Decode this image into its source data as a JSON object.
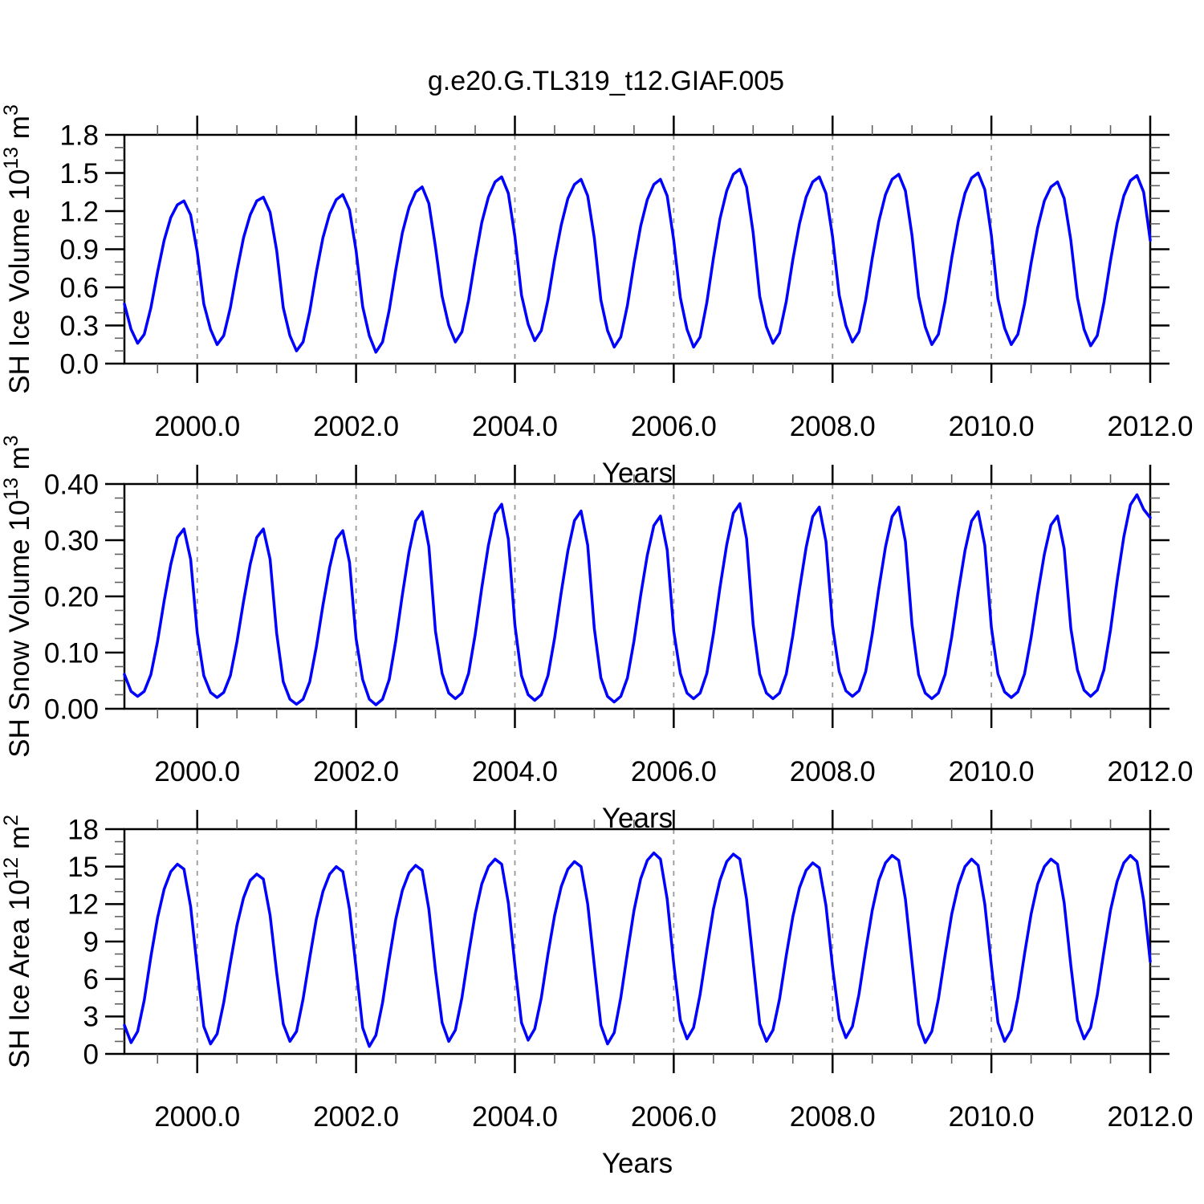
{
  "title": "g.e20.G.TL319_t12.GIAF.005",
  "colors": {
    "line": "#0000ff",
    "grid": "#999999",
    "axis": "#000000",
    "minor_tick": "#606060",
    "background": "#ffffff"
  },
  "chart_data": {
    "type": "line",
    "x_label": "Years",
    "x_lim": [
      1999.083,
      2012.0
    ],
    "x_ticks": [
      2000,
      2002,
      2004,
      2006,
      2008,
      2010,
      2012
    ],
    "x_tick_labels": [
      "2000.0",
      "2002.0",
      "2004.0",
      "2006.0",
      "2008.0",
      "2010.0",
      "2012.0"
    ],
    "x_minor_step": 0.5,
    "x_grid": [
      2000,
      2002,
      2004,
      2006,
      2008,
      2010
    ],
    "x_monthly": [
      1999.083,
      1999.167,
      1999.25,
      1999.333,
      1999.417,
      1999.5,
      1999.583,
      1999.667,
      1999.75,
      1999.833,
      1999.917,
      2000,
      2000.083,
      2000.167,
      2000.25,
      2000.333,
      2000.417,
      2000.5,
      2000.583,
      2000.667,
      2000.75,
      2000.833,
      2000.917,
      2001,
      2001.083,
      2001.167,
      2001.25,
      2001.333,
      2001.417,
      2001.5,
      2001.583,
      2001.667,
      2001.75,
      2001.833,
      2001.917,
      2002,
      2002.083,
      2002.167,
      2002.25,
      2002.333,
      2002.417,
      2002.5,
      2002.583,
      2002.667,
      2002.75,
      2002.833,
      2002.917,
      2003,
      2003.083,
      2003.167,
      2003.25,
      2003.333,
      2003.417,
      2003.5,
      2003.583,
      2003.667,
      2003.75,
      2003.833,
      2003.917,
      2004,
      2004.083,
      2004.167,
      2004.25,
      2004.333,
      2004.417,
      2004.5,
      2004.583,
      2004.667,
      2004.75,
      2004.833,
      2004.917,
      2005,
      2005.083,
      2005.167,
      2005.25,
      2005.333,
      2005.417,
      2005.5,
      2005.583,
      2005.667,
      2005.75,
      2005.833,
      2005.917,
      2006,
      2006.083,
      2006.167,
      2006.25,
      2006.333,
      2006.417,
      2006.5,
      2006.583,
      2006.667,
      2006.75,
      2006.833,
      2006.917,
      2007,
      2007.083,
      2007.167,
      2007.25,
      2007.333,
      2007.417,
      2007.5,
      2007.583,
      2007.667,
      2007.75,
      2007.833,
      2007.917,
      2008,
      2008.083,
      2008.167,
      2008.25,
      2008.333,
      2008.417,
      2008.5,
      2008.583,
      2008.667,
      2008.75,
      2008.833,
      2008.917,
      2009,
      2009.083,
      2009.167,
      2009.25,
      2009.333,
      2009.417,
      2009.5,
      2009.583,
      2009.667,
      2009.75,
      2009.833,
      2009.917,
      2010,
      2010.083,
      2010.167,
      2010.25,
      2010.333,
      2010.417,
      2010.5,
      2010.583,
      2010.667,
      2010.75,
      2010.833,
      2010.917,
      2011,
      2011.083,
      2011.167,
      2011.25,
      2011.333,
      2011.417,
      2011.5,
      2011.583,
      2011.667,
      2011.75,
      2011.833,
      2011.917,
      2012
    ],
    "panels": [
      {
        "name": "sh-ice-volume",
        "y_label_parts": [
          {
            "t": "SH Ice Volume 10"
          },
          {
            "t": "13",
            "sup": true
          },
          {
            "t": " m"
          },
          {
            "t": "3",
            "sup": true
          }
        ],
        "y_lim": [
          0.0,
          1.8
        ],
        "y_ticks": [
          0.0,
          0.3,
          0.6,
          0.9,
          1.2,
          1.5,
          1.8
        ],
        "y_tick_labels": [
          "0.0",
          "0.3",
          "0.6",
          "0.9",
          "1.2",
          "1.5",
          "1.8"
        ],
        "y_minor_step": 0.1,
        "values": [
          0.47,
          0.27,
          0.16,
          0.23,
          0.44,
          0.72,
          0.97,
          1.15,
          1.25,
          1.28,
          1.17,
          0.88,
          0.47,
          0.27,
          0.15,
          0.22,
          0.44,
          0.73,
          0.99,
          1.17,
          1.28,
          1.31,
          1.19,
          0.89,
          0.44,
          0.22,
          0.1,
          0.17,
          0.41,
          0.72,
          0.99,
          1.18,
          1.29,
          1.33,
          1.21,
          0.89,
          0.45,
          0.22,
          0.09,
          0.17,
          0.42,
          0.74,
          1.03,
          1.23,
          1.35,
          1.39,
          1.26,
          0.92,
          0.53,
          0.3,
          0.17,
          0.25,
          0.5,
          0.82,
          1.11,
          1.31,
          1.43,
          1.47,
          1.34,
          1.0,
          0.54,
          0.31,
          0.18,
          0.26,
          0.5,
          0.82,
          1.09,
          1.3,
          1.41,
          1.45,
          1.32,
          0.99,
          0.5,
          0.26,
          0.13,
          0.21,
          0.46,
          0.79,
          1.08,
          1.29,
          1.41,
          1.45,
          1.32,
          0.97,
          0.52,
          0.27,
          0.13,
          0.21,
          0.48,
          0.83,
          1.14,
          1.36,
          1.49,
          1.53,
          1.39,
          1.03,
          0.53,
          0.29,
          0.16,
          0.24,
          0.49,
          0.82,
          1.1,
          1.31,
          1.43,
          1.47,
          1.34,
          1.0,
          0.54,
          0.3,
          0.17,
          0.25,
          0.5,
          0.83,
          1.12,
          1.33,
          1.45,
          1.49,
          1.36,
          1.01,
          0.53,
          0.29,
          0.15,
          0.23,
          0.49,
          0.83,
          1.12,
          1.34,
          1.46,
          1.5,
          1.37,
          1.01,
          0.51,
          0.28,
          0.15,
          0.23,
          0.47,
          0.79,
          1.07,
          1.28,
          1.39,
          1.43,
          1.3,
          0.97,
          0.52,
          0.27,
          0.14,
          0.22,
          0.48,
          0.81,
          1.1,
          1.32,
          1.44,
          1.48,
          1.35,
          0.97
        ]
      },
      {
        "name": "sh-snow-volume",
        "y_label_parts": [
          {
            "t": "SH Snow Volume 10"
          },
          {
            "t": "13",
            "sup": true
          },
          {
            "t": " m"
          },
          {
            "t": "3",
            "sup": true
          }
        ],
        "y_lim": [
          0.0,
          0.4
        ],
        "y_ticks": [
          0.0,
          0.1,
          0.2,
          0.3,
          0.4
        ],
        "y_tick_labels": [
          "0.00",
          "0.10",
          "0.20",
          "0.30",
          "0.40"
        ],
        "y_minor_step": 0.025,
        "values": [
          0.061,
          0.031,
          0.022,
          0.031,
          0.061,
          0.12,
          0.192,
          0.257,
          0.305,
          0.32,
          0.266,
          0.135,
          0.059,
          0.029,
          0.02,
          0.029,
          0.059,
          0.119,
          0.191,
          0.257,
          0.305,
          0.32,
          0.266,
          0.134,
          0.048,
          0.017,
          0.008,
          0.017,
          0.048,
          0.11,
          0.184,
          0.252,
          0.302,
          0.317,
          0.261,
          0.125,
          0.052,
          0.017,
          0.007,
          0.017,
          0.052,
          0.121,
          0.203,
          0.279,
          0.334,
          0.351,
          0.289,
          0.138,
          0.063,
          0.028,
          0.018,
          0.028,
          0.063,
          0.132,
          0.215,
          0.291,
          0.347,
          0.364,
          0.302,
          0.149,
          0.059,
          0.025,
          0.015,
          0.025,
          0.059,
          0.126,
          0.207,
          0.281,
          0.335,
          0.352,
          0.291,
          0.143,
          0.055,
          0.022,
          0.012,
          0.022,
          0.055,
          0.121,
          0.201,
          0.273,
          0.326,
          0.343,
          0.283,
          0.138,
          0.063,
          0.028,
          0.018,
          0.028,
          0.063,
          0.133,
          0.216,
          0.292,
          0.348,
          0.365,
          0.303,
          0.15,
          0.062,
          0.028,
          0.018,
          0.028,
          0.062,
          0.131,
          0.212,
          0.287,
          0.342,
          0.359,
          0.298,
          0.148,
          0.066,
          0.032,
          0.022,
          0.032,
          0.066,
          0.133,
          0.214,
          0.288,
          0.342,
          0.359,
          0.298,
          0.15,
          0.061,
          0.028,
          0.018,
          0.028,
          0.061,
          0.128,
          0.208,
          0.281,
          0.334,
          0.351,
          0.291,
          0.145,
          0.062,
          0.03,
          0.02,
          0.03,
          0.062,
          0.127,
          0.204,
          0.275,
          0.327,
          0.343,
          0.285,
          0.143,
          0.069,
          0.033,
          0.022,
          0.033,
          0.069,
          0.14,
          0.227,
          0.306,
          0.363,
          0.381,
          0.355,
          0.34
        ]
      },
      {
        "name": "sh-ice-area",
        "y_label_parts": [
          {
            "t": "SH Ice Area 10"
          },
          {
            "t": "12",
            "sup": true
          },
          {
            "t": " m"
          },
          {
            "t": "2",
            "sup": true
          }
        ],
        "y_lim": [
          0,
          18
        ],
        "y_ticks": [
          0,
          3,
          6,
          9,
          12,
          15,
          18
        ],
        "y_tick_labels": [
          "0",
          "3",
          "6",
          "9",
          "12",
          "15",
          "18"
        ],
        "y_minor_step": 1,
        "values": [
          2.3,
          0.9,
          1.8,
          4.3,
          7.8,
          10.9,
          13.2,
          14.6,
          15.2,
          14.8,
          11.8,
          6.9,
          2.2,
          0.8,
          1.6,
          4.1,
          7.3,
          10.3,
          12.5,
          13.9,
          14.4,
          14.0,
          11.1,
          6.5,
          2.4,
          1.0,
          1.8,
          4.4,
          7.7,
          10.8,
          13.0,
          14.4,
          15.0,
          14.6,
          11.6,
          6.9,
          2.1,
          0.6,
          1.5,
          4.1,
          7.6,
          10.8,
          13.1,
          14.5,
          15.1,
          14.7,
          11.6,
          6.7,
          2.5,
          1.0,
          1.9,
          4.5,
          8.0,
          11.2,
          13.6,
          15.0,
          15.6,
          15.2,
          12.1,
          7.1,
          2.5,
          1.1,
          2.0,
          4.5,
          8.0,
          11.1,
          13.4,
          14.8,
          15.4,
          15.0,
          12.0,
          7.1,
          2.3,
          0.8,
          1.7,
          4.5,
          8.1,
          11.5,
          14.0,
          15.5,
          16.1,
          15.6,
          12.4,
          7.2,
          2.7,
          1.2,
          2.1,
          4.8,
          8.3,
          11.6,
          13.9,
          15.4,
          16.0,
          15.6,
          12.4,
          7.4,
          2.4,
          1.0,
          1.9,
          4.4,
          7.9,
          11.0,
          13.3,
          14.7,
          15.3,
          14.9,
          11.9,
          7.0,
          2.8,
          1.3,
          2.2,
          4.8,
          8.3,
          11.5,
          13.9,
          15.3,
          15.9,
          15.5,
          12.4,
          7.4,
          2.4,
          0.9,
          1.8,
          4.4,
          7.9,
          11.2,
          13.5,
          15.0,
          15.6,
          15.1,
          12.0,
          7.1,
          2.5,
          1.0,
          1.9,
          4.5,
          8.0,
          11.2,
          13.6,
          15.0,
          15.6,
          15.2,
          12.1,
          7.1,
          2.7,
          1.2,
          2.1,
          4.7,
          8.2,
          11.5,
          13.8,
          15.3,
          15.9,
          15.4,
          12.3,
          7.4
        ]
      }
    ]
  }
}
